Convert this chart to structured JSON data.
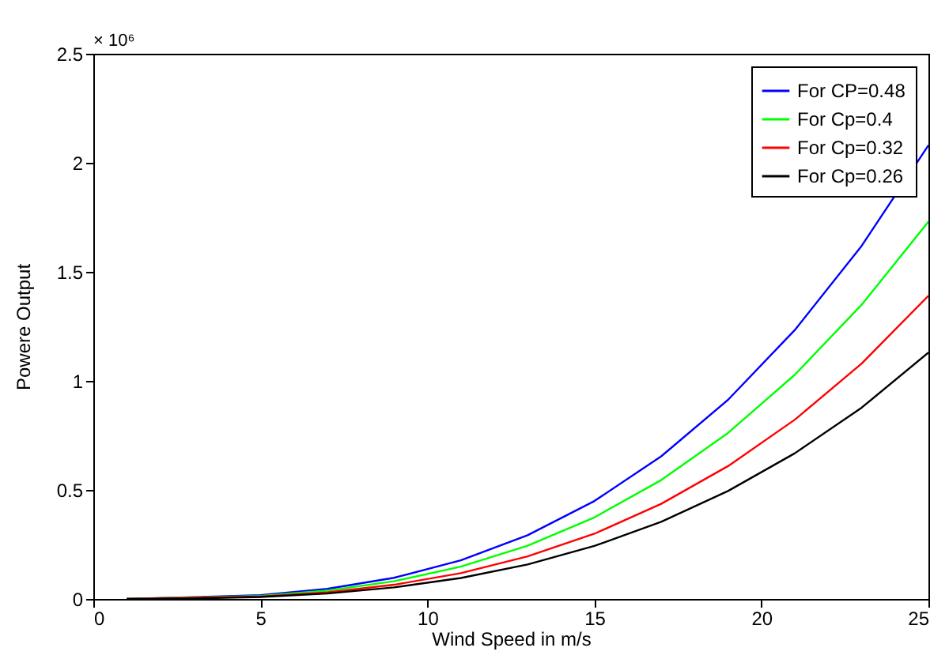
{
  "chart_data": {
    "type": "line",
    "xlabel": "Wind Speed in m/s",
    "ylabel": "Powere Output",
    "annotations": [
      "× 10⁶"
    ],
    "x": [
      1,
      3,
      5,
      7,
      9,
      11,
      13,
      15,
      17,
      19,
      21,
      23,
      25
    ],
    "series": [
      {
        "name": "For CP=0.48",
        "color": "#0000ff",
        "values": [
          0.0,
          null,
          0.017,
          0.046,
          0.097,
          0.177,
          0.292,
          0.449,
          0.654,
          0.913,
          1.233,
          1.619,
          2.08
        ]
      },
      {
        "name": "For Cp=0.4",
        "color": "#00ff00",
        "values": [
          0.0,
          null,
          0.014,
          0.038,
          0.081,
          0.148,
          0.244,
          0.374,
          0.545,
          0.761,
          1.028,
          1.349,
          1.73
        ]
      },
      {
        "name": "For Cp=0.32",
        "color": "#ff0000",
        "values": [
          0.0,
          null,
          0.011,
          0.03,
          0.065,
          0.118,
          0.195,
          0.299,
          0.436,
          0.609,
          0.822,
          1.079,
          1.39
        ]
      },
      {
        "name": "For Cp=0.26",
        "color": "#000000",
        "values": [
          0.0,
          0.002,
          0.009,
          0.025,
          0.053,
          0.096,
          0.158,
          0.243,
          0.354,
          0.495,
          0.668,
          0.877,
          1.13
        ]
      }
    ],
    "xlim": [
      0,
      25
    ],
    "xticks": [
      0,
      5,
      10,
      15,
      20,
      25
    ],
    "ylim": [
      0,
      2.5
    ],
    "yticks": [
      0,
      0.5,
      1,
      1.5,
      2,
      2.5
    ],
    "grid": false,
    "legend": "top right",
    "marker": "none",
    "line_style": "solid"
  }
}
